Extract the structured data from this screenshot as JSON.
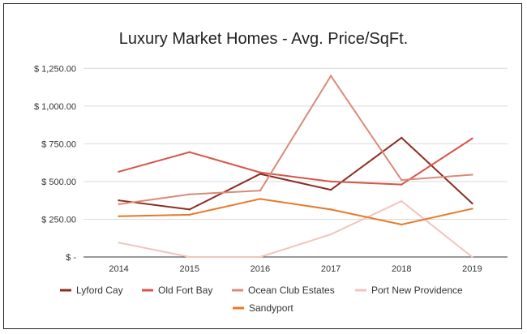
{
  "chart_data": {
    "type": "line",
    "title": "Luxury Market Homes - Avg. Price/SqFt.",
    "xlabel": "",
    "ylabel": "",
    "categories": [
      "2014",
      "2015",
      "2016",
      "2017",
      "2018",
      "2019"
    ],
    "ylim": [
      0,
      1300
    ],
    "y_ticks": [
      0,
      250,
      500,
      750,
      1000,
      1250
    ],
    "y_tick_labels": [
      "$ -",
      "$ 250.00",
      "$ 500.00",
      "$ 750.00",
      "$ 1,000.00",
      "$ 1,250.00"
    ],
    "grid": true,
    "legend_position": "bottom",
    "series": [
      {
        "name": "Lyford Cay",
        "color": "#8b2e24",
        "values": [
          375,
          315,
          550,
          445,
          790,
          355
        ]
      },
      {
        "name": "Old Fort Bay",
        "color": "#d9534a",
        "values": [
          565,
          695,
          560,
          500,
          480,
          785
        ]
      },
      {
        "name": "Ocean Club Estates",
        "color": "#dc8a78",
        "values": [
          350,
          415,
          440,
          1200,
          510,
          545
        ]
      },
      {
        "name": "Port New Providence",
        "color": "#f0c4bc",
        "values": [
          95,
          0,
          0,
          150,
          370,
          0
        ]
      },
      {
        "name": "Sandyport",
        "color": "#e8782a",
        "values": [
          270,
          280,
          385,
          315,
          215,
          320
        ]
      }
    ]
  }
}
